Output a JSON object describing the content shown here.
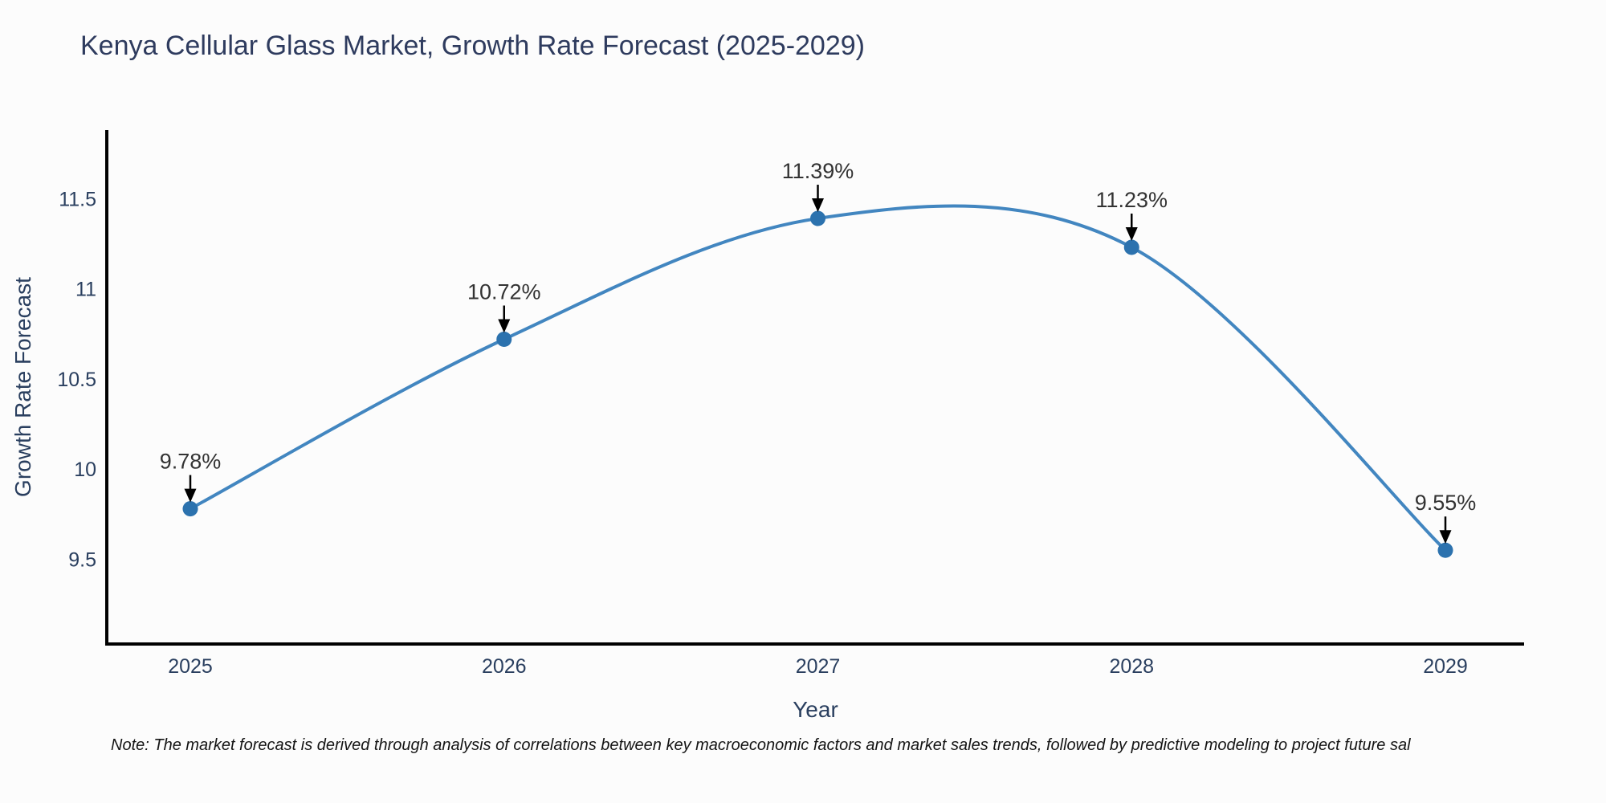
{
  "title": "Kenya Cellular Glass Market, Growth Rate Forecast (2025-2029)",
  "note": "Note: The market forecast is derived through analysis of correlations between key macroeconomic factors and market sales trends, followed by predictive modeling to project future sal",
  "chart_data": {
    "type": "line",
    "title": "Kenya Cellular Glass Market, Growth Rate Forecast (2025-2029)",
    "xlabel": "Year",
    "ylabel": "Growth Rate Forecast",
    "categories": [
      "2025",
      "2026",
      "2027",
      "2028",
      "2029"
    ],
    "series": [
      {
        "name": "Growth Rate Forecast",
        "values": [
          9.78,
          10.72,
          11.39,
          11.23,
          9.55
        ]
      }
    ],
    "point_labels": [
      "9.78%",
      "10.72%",
      "11.39%",
      "11.23%",
      "9.55%"
    ],
    "yticks": [
      9.5,
      10,
      10.5,
      11,
      11.5
    ],
    "ylim": [
      9.03,
      11.88
    ],
    "line_shape": "spline",
    "grid": false,
    "legend_position": "none",
    "colors": {
      "line": "#4286c0",
      "marker": "#2c72ae",
      "axis": "#000000",
      "arrow": "#000000",
      "tick_label": "#2a3f5f",
      "axis_title": "#2a3f5f",
      "annotation": "#333333",
      "title": "#2e3b5e",
      "note": "#141414",
      "background": "#fcfcfc"
    }
  }
}
